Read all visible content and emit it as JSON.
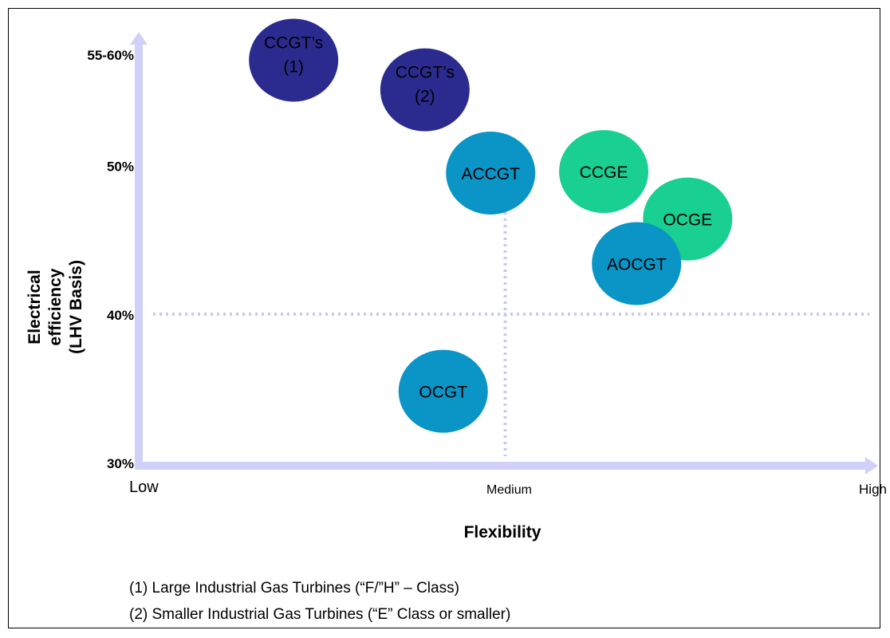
{
  "chart_data": {
    "type": "scatter",
    "title": "",
    "xlabel": "Flexibility",
    "ylabel_lines": [
      "Electrical",
      "efficiency",
      "(LHV Basis)"
    ],
    "x_ticks": [
      "Low",
      "Medium",
      "High"
    ],
    "xlim": [
      0,
      2
    ],
    "y_ticks": [
      {
        "label": "30%",
        "value": 30
      },
      {
        "label": "40%",
        "value": 40
      },
      {
        "label": "50%",
        "value": 50
      },
      {
        "label": "55-60%",
        "value": 57.5
      }
    ],
    "ylim": [
      30,
      57.5
    ],
    "reference_lines": {
      "x": 1,
      "y": 40
    },
    "points": [
      {
        "label_lines": [
          "CCGT’s",
          "(1)"
        ],
        "x": 0.42,
        "y": 57.1,
        "color": "#2b2b8f"
      },
      {
        "label_lines": [
          "CCGT’s",
          "(2)"
        ],
        "x": 0.78,
        "y": 55.1,
        "color": "#2b2b8f"
      },
      {
        "label_lines": [
          "ACCGT"
        ],
        "x": 0.96,
        "y": 49.5,
        "color": "#0a95c6"
      },
      {
        "label_lines": [
          "CCGE"
        ],
        "x": 1.27,
        "y": 49.6,
        "color": "#19cf92"
      },
      {
        "label_lines": [
          "OCGE"
        ],
        "x": 1.5,
        "y": 46.4,
        "color": "#19cf92"
      },
      {
        "label_lines": [
          "AOCGT"
        ],
        "x": 1.36,
        "y": 43.4,
        "color": "#0a95c6"
      },
      {
        "label_lines": [
          "OCGT"
        ],
        "x": 0.83,
        "y": 34.8,
        "color": "#0a95c6"
      }
    ],
    "grid": false,
    "colors": {
      "axis": "#d0d0f8",
      "reference": "#c8c8f4",
      "text": "#000000"
    }
  },
  "footnotes": [
    "(1) Large Industrial Gas Turbines (“F/”H” – Class)",
    "(2) Smaller Industrial Gas Turbines (“E” Class or smaller)"
  ]
}
